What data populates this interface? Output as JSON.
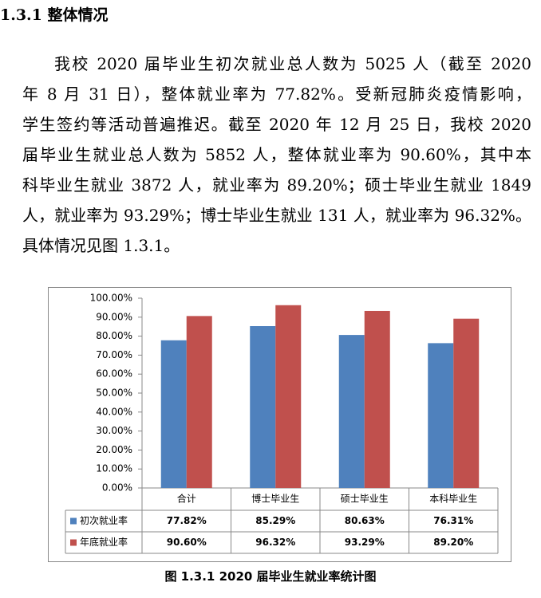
{
  "heading": "1.3.1 整体情况",
  "paragraph": [
    "我校 2020 届毕业生初次就业总人数为 5025 人（截至 2020",
    "年 8 月 31 日），整体就业率为 77.82%。受新冠肺炎疫情影响，",
    "学生签约等活动普遍推迟。截至 2020 年 12 月 25 日，我校 2020",
    "届毕业生就业总人数为 5852 人，整体就业率为 90.60%，其中本",
    "科毕业生就业 3872 人，就业率为 89.20%；硕士毕业生就业 1849",
    "人，就业率为 93.29%；博士毕业生就业 131 人，就业率为 96.32%。",
    "具体情况见图 1.3.1。"
  ],
  "chart_data": {
    "type": "bar",
    "categories": [
      "合计",
      "博士毕业生",
      "硕士毕业生",
      "本科毕业生"
    ],
    "series": [
      {
        "name": "初次就业率",
        "color": "#4f81bd",
        "values": [
          77.82,
          85.29,
          80.63,
          76.31
        ],
        "value_labels": [
          "77.82%",
          "85.29%",
          "80.63%",
          "76.31%"
        ]
      },
      {
        "name": "年底就业率",
        "color": "#c0504d",
        "values": [
          90.6,
          96.32,
          93.29,
          89.2
        ],
        "value_labels": [
          "90.60%",
          "96.32%",
          "93.29%",
          "89.20%"
        ]
      }
    ],
    "ylim": [
      0,
      100
    ],
    "yticks": [
      {
        "value": 0,
        "label": "0.00%"
      },
      {
        "value": 10,
        "label": "10.00%"
      },
      {
        "value": 20,
        "label": "20.00%"
      },
      {
        "value": 30,
        "label": "30.00%"
      },
      {
        "value": 40,
        "label": "40.00%"
      },
      {
        "value": 50,
        "label": "50.00%"
      },
      {
        "value": 60,
        "label": "60.00%"
      },
      {
        "value": 70,
        "label": "70.00%"
      },
      {
        "value": 80,
        "label": "80.00%"
      },
      {
        "value": 90,
        "label": "90.00%"
      },
      {
        "value": 100,
        "label": "100.00%"
      }
    ]
  },
  "caption": "图 1.3.1 2020 届毕业生就业率统计图"
}
